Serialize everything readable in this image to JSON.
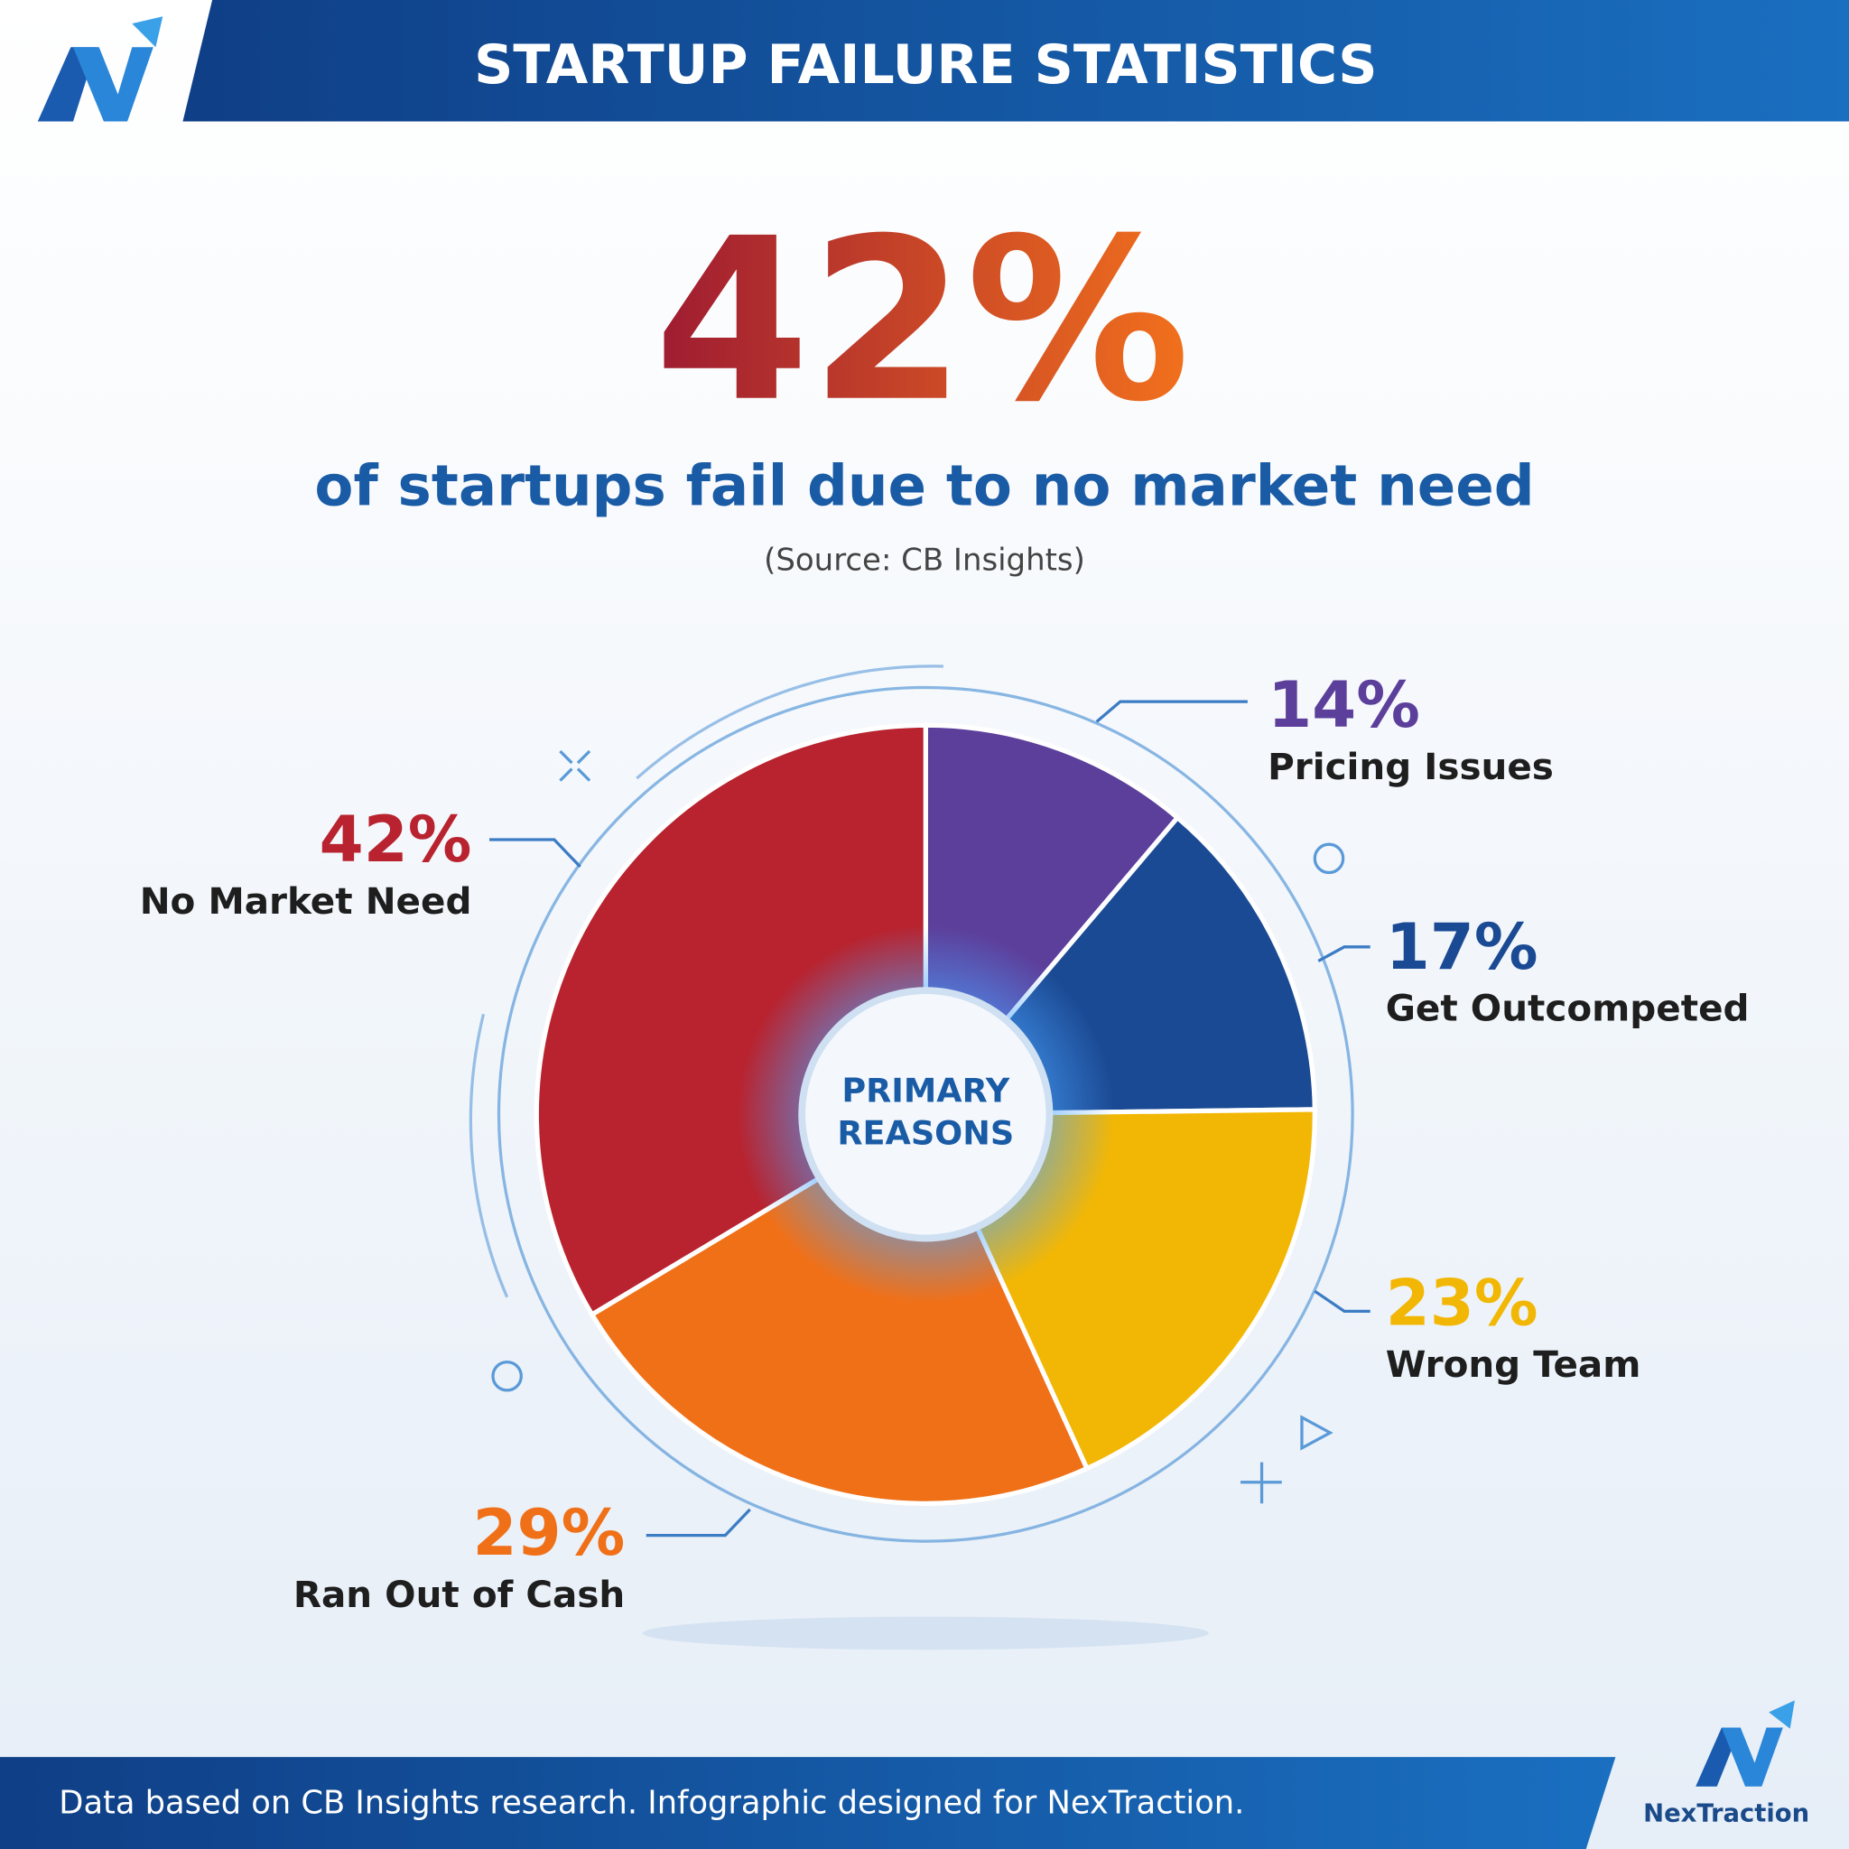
{
  "chart_data": {
    "type": "pie",
    "title": "STARTUP FAILURE STATISTICS",
    "headline": "42%",
    "subtitle": "of startups fail due to no market need",
    "source": "(Source: CB Insights)",
    "center_label": [
      "PRIMARY",
      "REASONS"
    ],
    "categories": [
      "Pricing Issues",
      "Get Outcompeted",
      "Wrong Team",
      "Ran Out of Cash",
      "No Market Need"
    ],
    "values": [
      14,
      17,
      23,
      29,
      42
    ],
    "value_labels": [
      "14%",
      "17%",
      "23%",
      "29%",
      "42%"
    ],
    "colors": [
      "#5c3f9b",
      "#1b4a94",
      "#f2b705",
      "#f07018",
      "#b8232f"
    ],
    "footer": "Data based on CB Insights research. Infographic designed for NexTraction.",
    "brand": "NexTraction"
  }
}
